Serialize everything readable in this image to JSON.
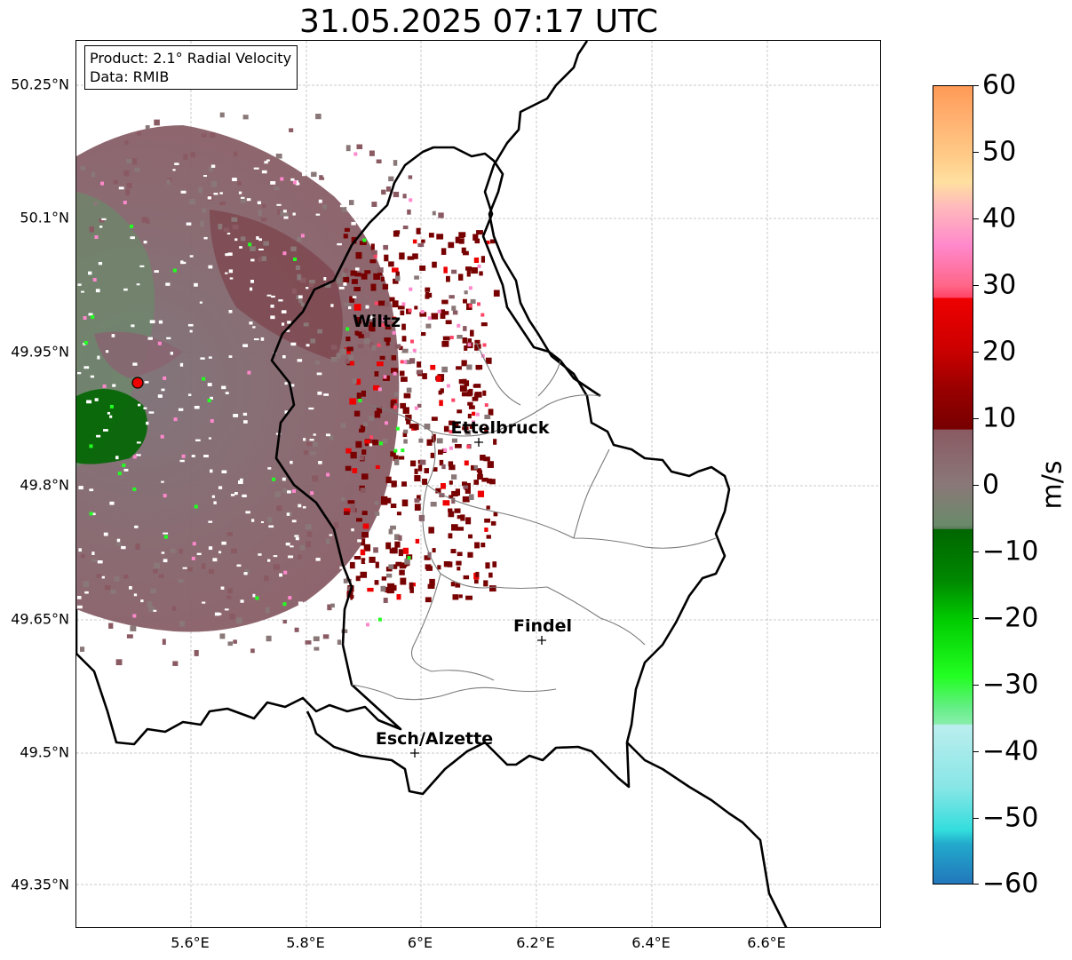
{
  "title": "31.05.2025 07:17 UTC",
  "info": {
    "product": "Product: 2.1° Radial Velocity",
    "data_source": "Data: RMIB"
  },
  "map": {
    "lon_range": [
      5.4,
      6.8
    ],
    "lat_range": [
      49.3,
      50.3
    ],
    "lat_ticks": [
      "50.25°N",
      "50.1°N",
      "49.95°N",
      "49.8°N",
      "49.65°N",
      "49.5°N",
      "49.35°N"
    ],
    "lon_ticks": [
      "5.6°E",
      "5.8°E",
      "6°E",
      "6.2°E",
      "6.4°E",
      "6.6°E"
    ],
    "radar_site": {
      "lon": 5.505,
      "lat": 49.914
    },
    "cities": [
      {
        "name": "Wiltz",
        "lon": 5.93,
        "lat": 49.97
      },
      {
        "name": "Ettelbruck",
        "lon": 6.1,
        "lat": 49.85
      },
      {
        "name": "Findel",
        "lon": 6.21,
        "lat": 49.63
      },
      {
        "name": "Esch/Alzette",
        "lon": 5.99,
        "lat": 49.5
      }
    ]
  },
  "colorbar": {
    "unit": "m/s",
    "range": [
      -60,
      60
    ],
    "ticks": [
      "60",
      "50",
      "40",
      "30",
      "20",
      "10",
      "0",
      "−10",
      "−20",
      "−30",
      "−40",
      "−50",
      "−60"
    ],
    "colors": {
      "orange_top": "#ff9a56",
      "peach": "#ffcc88",
      "pink": "#ff88cc",
      "salmon_red": "#ff4466",
      "red": "#ee0000",
      "dark_red": "#770000",
      "mauve": "#8a5a63",
      "gray_mauve": "#8a7878",
      "gray_green": "#6a8a6a",
      "dark_green": "#006600",
      "bright_green": "#22ff22",
      "light_cyan": "#bbeeee",
      "cyan": "#33dddd",
      "blue": "#2277bb"
    }
  }
}
